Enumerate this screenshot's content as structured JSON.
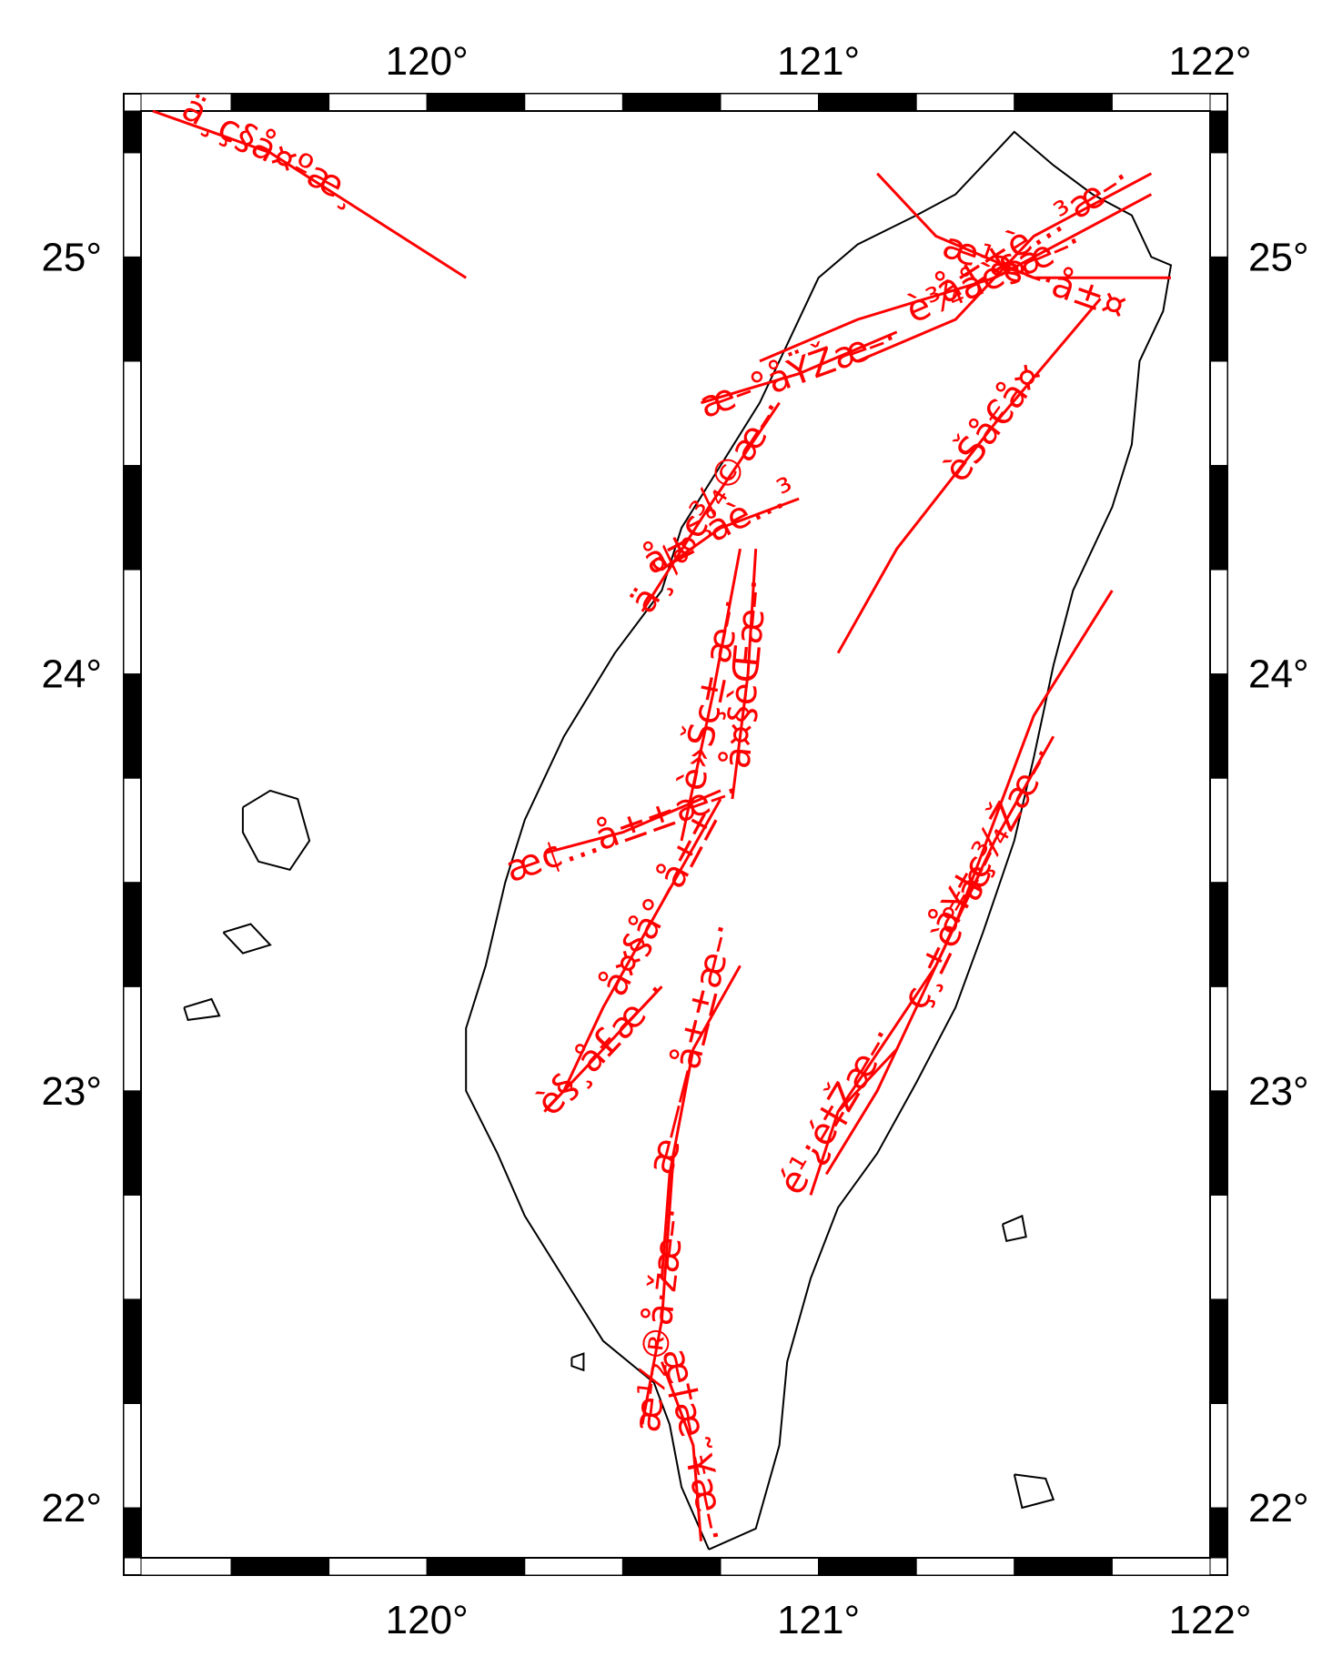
{
  "map": {
    "lon_range": [
      119.27,
      122.0
    ],
    "lat_range": [
      21.88,
      25.35
    ],
    "colors": {
      "fault": "#ff0000",
      "coast": "#000000",
      "frame_dark": "#000000",
      "frame_light": "#ffffff"
    },
    "lon_ticks": [
      {
        "value": 120,
        "label": "120°"
      },
      {
        "value": 121,
        "label": "121°"
      },
      {
        "value": 122,
        "label": "122°"
      }
    ],
    "lat_ticks": [
      {
        "value": 22,
        "label": "22°"
      },
      {
        "value": 23,
        "label": "23°"
      },
      {
        "value": 24,
        "label": "24°"
      },
      {
        "value": 25,
        "label": "25°"
      }
    ]
  },
  "faults": [
    {
      "label": "ä¸ç§å¤ºæ¸",
      "coords": [
        [
          119.3,
          25.35
        ],
        [
          119.6,
          25.25
        ],
        [
          120.1,
          24.95
        ]
      ]
    },
    {
      "label": "æ¹æ–·å±¤",
      "coords": [
        [
          121.15,
          25.2
        ],
        [
          121.3,
          25.05
        ],
        [
          121.55,
          24.95
        ],
        [
          121.9,
          24.95
        ]
      ]
    },
    {
      "label": "è¾åè§æ–·",
      "coords": [
        [
          120.85,
          24.75
        ],
        [
          121.1,
          24.85
        ],
        [
          121.45,
          24.95
        ],
        [
          121.85,
          25.15
        ]
      ]
    },
    {
      "label": "å±±è…³æ–·",
      "coords": [
        [
          121.1,
          24.75
        ],
        [
          121.35,
          24.85
        ],
        [
          121.55,
          25.05
        ],
        [
          121.85,
          25.2
        ]
      ]
    },
    {
      "label": "æ–°åŸŽæ–·",
      "coords": [
        [
          120.7,
          24.65
        ],
        [
          120.95,
          24.72
        ],
        [
          121.2,
          24.82
        ]
      ]
    },
    {
      "label": "ä¸‰ç¾©æ–·",
      "coords": [
        [
          120.55,
          24.15
        ],
        [
          120.72,
          24.4
        ],
        [
          120.9,
          24.65
        ]
      ]
    },
    {
      "label": "å±¯å­è…³",
      "coords": [
        [
          120.6,
          24.25
        ],
        [
          120.75,
          24.35
        ],
        [
          120.95,
          24.42
        ]
      ]
    },
    {
      "label": "èŠå€å¤",
      "coords": [
        [
          121.05,
          24.05
        ],
        [
          121.2,
          24.3
        ],
        [
          121.45,
          24.6
        ],
        [
          121.72,
          24.9
        ]
      ]
    },
    {
      "label": "è»Šç± æ–·",
      "coords": [
        [
          120.65,
          23.6
        ],
        [
          120.73,
          23.95
        ],
        [
          120.8,
          24.3
        ]
      ]
    },
    {
      "label": "å¤§èŒæ–·",
      "coords": [
        [
          120.78,
          23.7
        ],
        [
          120.82,
          24.0
        ],
        [
          120.84,
          24.3
        ]
      ]
    },
    {
      "label": "æ¢…å±±æ–·",
      "coords": [
        [
          120.3,
          23.57
        ],
        [
          120.5,
          23.62
        ],
        [
          120.75,
          23.72
        ]
      ]
    },
    {
      "label": "å¤§å°–å±±",
      "coords": [
        [
          120.35,
          23.0
        ],
        [
          120.45,
          23.2
        ],
        [
          120.6,
          23.45
        ],
        [
          120.75,
          23.7
        ]
      ]
    },
    {
      "label": "è§¸å£æ–·",
      "coords": [
        [
          120.3,
          22.95
        ],
        [
          120.45,
          23.1
        ],
        [
          120.6,
          23.25
        ]
      ]
    },
    {
      "label": "æ——å±±æ–·",
      "coords": [
        [
          120.6,
          22.55
        ],
        [
          120.62,
          22.8
        ],
        [
          120.68,
          23.1
        ],
        [
          120.8,
          23.3
        ]
      ]
    },
    {
      "label": "æ½®å·žæ–·",
      "coords": [
        [
          120.55,
          22.2
        ],
        [
          120.6,
          22.45
        ],
        [
          120.63,
          22.85
        ]
      ]
    },
    {
      "label": "æ†æ˜¥æ–·",
      "coords": [
        [
          120.7,
          21.92
        ],
        [
          120.68,
          22.15
        ],
        [
          120.6,
          22.35
        ]
      ]
    },
    {
      "label": "ç¸±è°·æ–·",
      "coords": [
        [
          121.02,
          22.8
        ],
        [
          121.15,
          23.0
        ],
        [
          121.35,
          23.4
        ],
        [
          121.55,
          23.9
        ],
        [
          121.75,
          24.2
        ]
      ]
    },
    {
      "label": "å¥‡ç¾Žæ–·",
      "coords": [
        [
          121.05,
          22.95
        ],
        [
          121.3,
          23.3
        ],
        [
          121.45,
          23.6
        ],
        [
          121.6,
          23.85
        ]
      ]
    },
    {
      "label": "é¹¿é‡Žæ–·",
      "coords": [
        [
          120.98,
          22.75
        ],
        [
          121.05,
          22.95
        ],
        [
          121.2,
          23.1
        ]
      ]
    }
  ],
  "coast": {
    "taiwan": [
      [
        120.72,
        21.9
      ],
      [
        120.84,
        21.95
      ],
      [
        120.9,
        22.15
      ],
      [
        120.92,
        22.35
      ],
      [
        120.98,
        22.55
      ],
      [
        121.05,
        22.72
      ],
      [
        121.15,
        22.85
      ],
      [
        121.25,
        23.02
      ],
      [
        121.35,
        23.2
      ],
      [
        121.42,
        23.38
      ],
      [
        121.5,
        23.6
      ],
      [
        121.55,
        23.8
      ],
      [
        121.6,
        24.02
      ],
      [
        121.65,
        24.2
      ],
      [
        121.75,
        24.4
      ],
      [
        121.8,
        24.55
      ],
      [
        121.82,
        24.75
      ],
      [
        121.88,
        24.87
      ],
      [
        121.9,
        24.98
      ],
      [
        121.85,
        25.0
      ],
      [
        121.8,
        25.1
      ],
      [
        121.7,
        25.15
      ],
      [
        121.6,
        25.22
      ],
      [
        121.5,
        25.3
      ],
      [
        121.42,
        25.22
      ],
      [
        121.35,
        25.15
      ],
      [
        121.25,
        25.1
      ],
      [
        121.1,
        25.03
      ],
      [
        121.0,
        24.95
      ],
      [
        120.95,
        24.85
      ],
      [
        120.85,
        24.65
      ],
      [
        120.75,
        24.5
      ],
      [
        120.65,
        24.35
      ],
      [
        120.6,
        24.2
      ],
      [
        120.48,
        24.05
      ],
      [
        120.35,
        23.85
      ],
      [
        120.25,
        23.65
      ],
      [
        120.2,
        23.5
      ],
      [
        120.15,
        23.3
      ],
      [
        120.1,
        23.15
      ],
      [
        120.1,
        23.0
      ],
      [
        120.18,
        22.85
      ],
      [
        120.25,
        22.7
      ],
      [
        120.35,
        22.55
      ],
      [
        120.45,
        22.4
      ],
      [
        120.58,
        22.3
      ],
      [
        120.62,
        22.2
      ],
      [
        120.65,
        22.05
      ],
      [
        120.72,
        21.9
      ]
    ],
    "islands": [
      [
        [
          119.53,
          23.68
        ],
        [
          119.6,
          23.72
        ],
        [
          119.67,
          23.7
        ],
        [
          119.7,
          23.6
        ],
        [
          119.65,
          23.53
        ],
        [
          119.57,
          23.55
        ],
        [
          119.53,
          23.62
        ],
        [
          119.53,
          23.68
        ]
      ],
      [
        [
          119.48,
          23.38
        ],
        [
          119.55,
          23.4
        ],
        [
          119.6,
          23.35
        ],
        [
          119.53,
          23.33
        ],
        [
          119.48,
          23.38
        ]
      ],
      [
        [
          121.47,
          22.68
        ],
        [
          121.52,
          22.7
        ],
        [
          121.53,
          22.65
        ],
        [
          121.48,
          22.64
        ],
        [
          121.47,
          22.68
        ]
      ],
      [
        [
          121.5,
          22.08
        ],
        [
          121.58,
          22.07
        ],
        [
          121.6,
          22.02
        ],
        [
          121.52,
          22.0
        ],
        [
          121.5,
          22.08
        ]
      ],
      [
        [
          119.38,
          23.2
        ],
        [
          119.45,
          23.22
        ],
        [
          119.47,
          23.18
        ],
        [
          119.39,
          23.17
        ],
        [
          119.38,
          23.2
        ]
      ],
      [
        [
          120.37,
          22.36
        ],
        [
          120.4,
          22.37
        ],
        [
          120.4,
          22.33
        ],
        [
          120.37,
          22.34
        ],
        [
          120.37,
          22.36
        ]
      ]
    ]
  }
}
